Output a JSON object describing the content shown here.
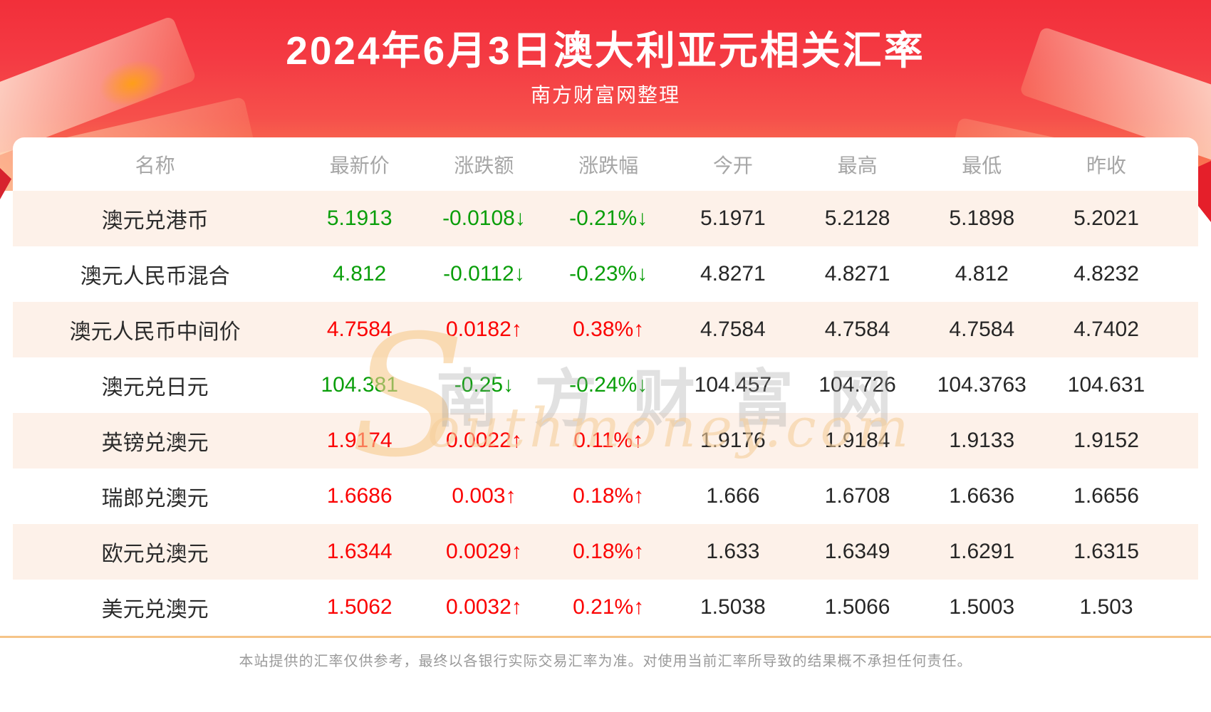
{
  "header": {
    "title": "2024年6月3日澳大利亚元相关汇率",
    "subtitle": "南方财富网整理"
  },
  "table": {
    "columns": [
      "名称",
      "最新价",
      "涨跌额",
      "涨跌幅",
      "今开",
      "最高",
      "最低",
      "昨收"
    ],
    "rows": [
      {
        "name": "澳元兑港币",
        "latest": "5.1913",
        "change": "-0.0108↓",
        "change_pct": "-0.21%↓",
        "open": "5.1971",
        "high": "5.2128",
        "low": "5.1898",
        "prev_close": "5.2021",
        "trend": "down"
      },
      {
        "name": "澳元人民币混合",
        "latest": "4.812",
        "change": "-0.0112↓",
        "change_pct": "-0.23%↓",
        "open": "4.8271",
        "high": "4.8271",
        "low": "4.812",
        "prev_close": "4.8232",
        "trend": "down"
      },
      {
        "name": "澳元人民币中间价",
        "latest": "4.7584",
        "change": "0.0182↑",
        "change_pct": "0.38%↑",
        "open": "4.7584",
        "high": "4.7584",
        "low": "4.7584",
        "prev_close": "4.7402",
        "trend": "up"
      },
      {
        "name": "澳元兑日元",
        "latest": "104.381",
        "change": "-0.25↓",
        "change_pct": "-0.24%↓",
        "open": "104.457",
        "high": "104.726",
        "low": "104.3763",
        "prev_close": "104.631",
        "trend": "down"
      },
      {
        "name": "英镑兑澳元",
        "latest": "1.9174",
        "change": "0.0022↑",
        "change_pct": "0.11%↑",
        "open": "1.9176",
        "high": "1.9184",
        "low": "1.9133",
        "prev_close": "1.9152",
        "trend": "up"
      },
      {
        "name": "瑞郎兑澳元",
        "latest": "1.6686",
        "change": "0.003↑",
        "change_pct": "0.18%↑",
        "open": "1.666",
        "high": "1.6708",
        "low": "1.6636",
        "prev_close": "1.6656",
        "trend": "up"
      },
      {
        "name": "欧元兑澳元",
        "latest": "1.6344",
        "change": "0.0029↑",
        "change_pct": "0.18%↑",
        "open": "1.633",
        "high": "1.6349",
        "low": "1.6291",
        "prev_close": "1.6315",
        "trend": "up"
      },
      {
        "name": "美元兑澳元",
        "latest": "1.5062",
        "change": "0.0032↑",
        "change_pct": "0.21%↑",
        "open": "1.5038",
        "high": "1.5066",
        "low": "1.5003",
        "prev_close": "1.503",
        "trend": "up"
      }
    ]
  },
  "chart_data": {
    "type": "table",
    "title": "2024年6月3日澳大利亚元相关汇率",
    "subtitle": "南方财富网整理",
    "columns": [
      "名称",
      "最新价",
      "涨跌额",
      "涨跌幅",
      "今开",
      "最高",
      "最低",
      "昨收"
    ],
    "rows": [
      [
        "澳元兑港币",
        "5.1913",
        "-0.0108↓",
        "-0.21%↓",
        "5.1971",
        "5.2128",
        "5.1898",
        "5.2021"
      ],
      [
        "澳元人民币混合",
        "4.812",
        "-0.0112↓",
        "-0.23%↓",
        "4.8271",
        "4.8271",
        "4.812",
        "4.8232"
      ],
      [
        "澳元人民币中间价",
        "4.7584",
        "0.0182↑",
        "0.38%↑",
        "4.7584",
        "4.7584",
        "4.7584",
        "4.7402"
      ],
      [
        "澳元兑日元",
        "104.381",
        "-0.25↓",
        "-0.24%↓",
        "104.457",
        "104.726",
        "104.3763",
        "104.631"
      ],
      [
        "英镑兑澳元",
        "1.9174",
        "0.0022↑",
        "0.11%↑",
        "1.9176",
        "1.9184",
        "1.9133",
        "1.9152"
      ],
      [
        "瑞郎兑澳元",
        "1.6686",
        "0.003↑",
        "0.18%↑",
        "1.666",
        "1.6708",
        "1.6636",
        "1.6656"
      ],
      [
        "欧元兑澳元",
        "1.6344",
        "0.0029↑",
        "0.18%↑",
        "1.633",
        "1.6349",
        "1.6291",
        "1.6315"
      ],
      [
        "美元兑澳元",
        "1.5062",
        "0.0032↑",
        "0.21%↑",
        "1.5038",
        "1.5066",
        "1.5003",
        "1.503"
      ]
    ],
    "colors": {
      "rise": "#fb0202",
      "fall": "#0a9e0a",
      "neutral_value": "#262626",
      "banner_red_top": "#f22f3a",
      "banner_red_bottom": "#fb8a60",
      "row_alt_background": "#fdf1e9",
      "divider": "#f5c488",
      "header_text": "#a6a6a6"
    }
  },
  "watermark": {
    "initial": "S",
    "cn": "南方财富网",
    "en": "outhmoney.com"
  },
  "footer": {
    "disclaimer": "本站提供的汇率仅供参考，最终以各银行实际交易汇率为准。对使用当前汇率所导致的结果概不承担任何责任。"
  }
}
